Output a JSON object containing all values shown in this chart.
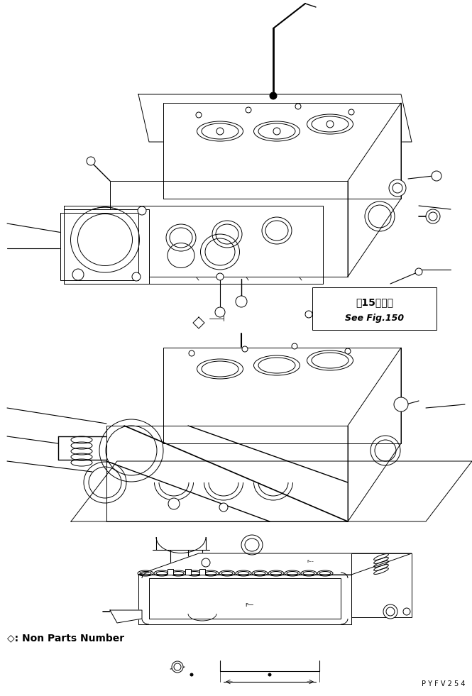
{
  "background_color": "#ffffff",
  "fig_width": 6.65,
  "fig_height": 9.81,
  "dpi": 100,
  "text_non_parts": "◇: Non Parts Number",
  "text_code": "P Y F V 2 5 4",
  "box_text1": "第15图参照",
  "box_text2": "See Fig.150",
  "lc": "#000000",
  "lw": 0.7
}
